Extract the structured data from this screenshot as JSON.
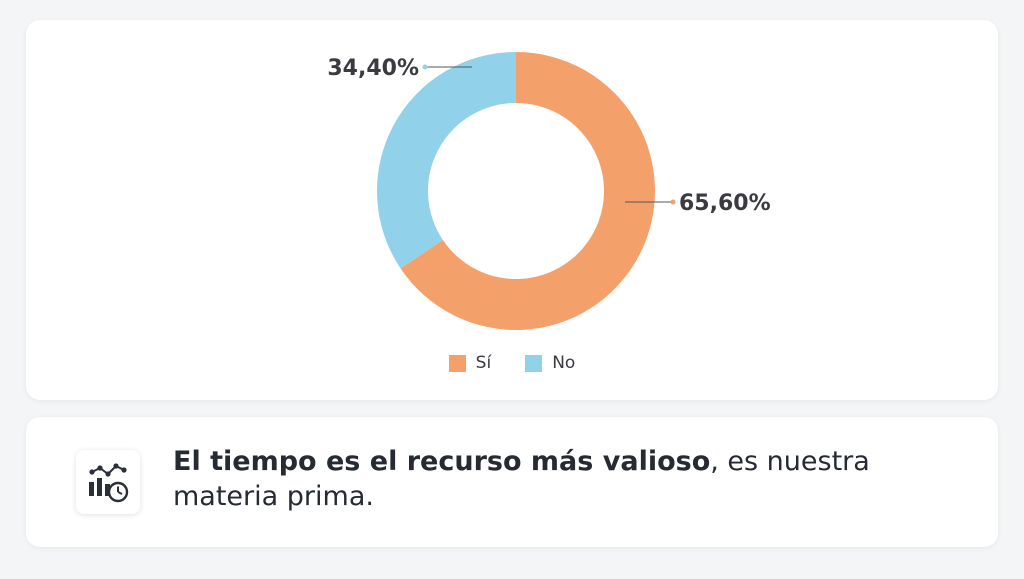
{
  "chart_data": {
    "type": "pie",
    "variant": "donut",
    "categories": [
      "Sí",
      "No"
    ],
    "values": [
      65.6,
      34.4
    ],
    "labels": [
      "65,60%",
      "34,40%"
    ],
    "colors": [
      "#f4a06a",
      "#92d1ea"
    ],
    "legend_position": "bottom"
  },
  "legend": {
    "items": [
      {
        "label": "Sí",
        "color": "#f4a06a"
      },
      {
        "label": "No",
        "color": "#92d1ea"
      }
    ]
  },
  "statement": {
    "bold_text": "El tiempo es el recurso más valioso",
    "rest_text": ", es nuestra materia prima."
  },
  "icon": {
    "name": "chart-clock-icon"
  }
}
